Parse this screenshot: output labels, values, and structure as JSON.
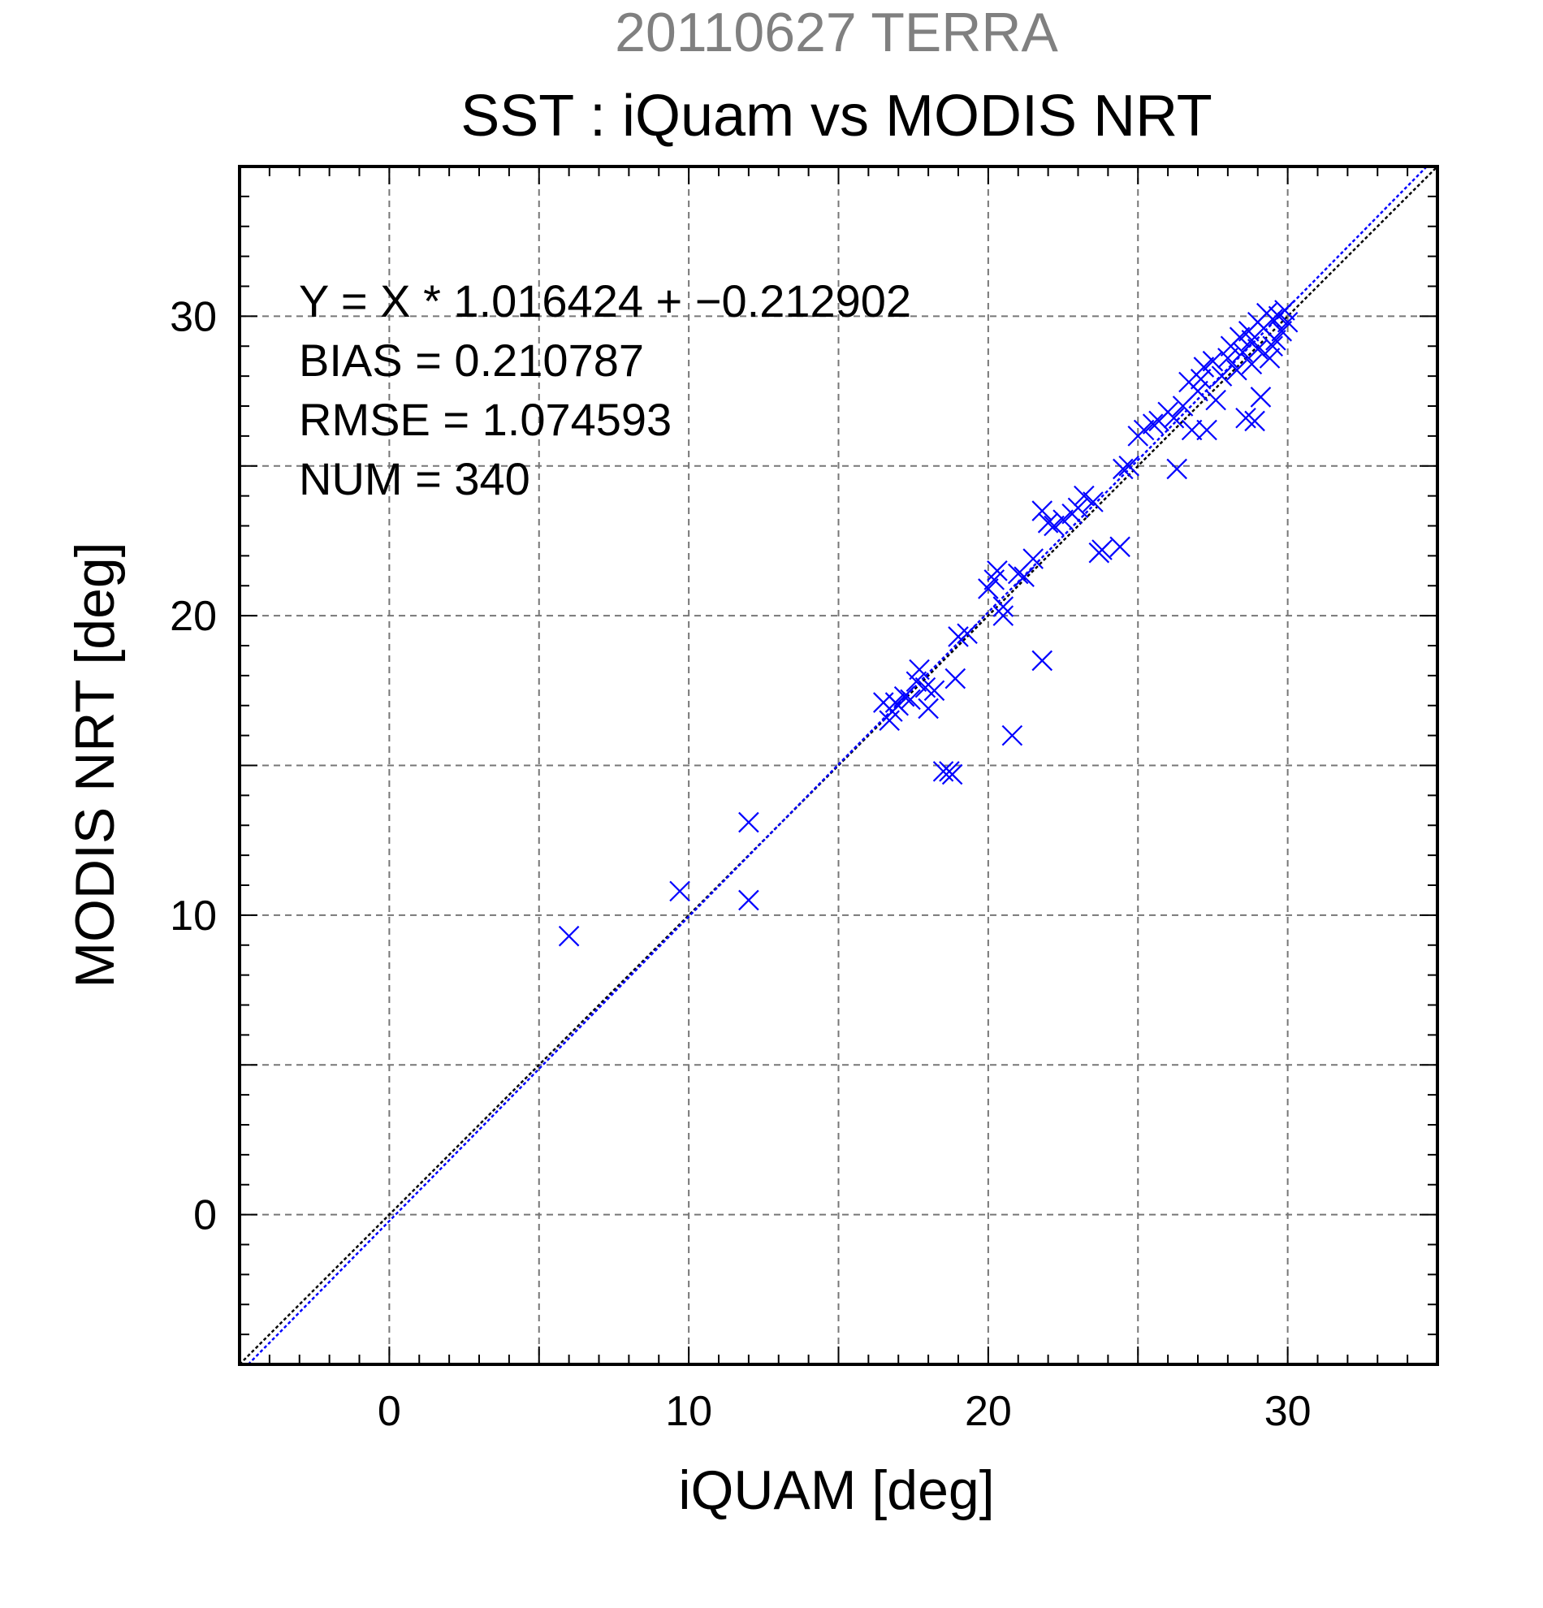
{
  "chart_data": {
    "type": "scatter",
    "supertitle": "20110627 TERRA",
    "title": "SST : iQuam vs MODIS NRT",
    "xlabel": "iQUAM [deg]",
    "ylabel": "MODIS NRT [deg]",
    "xlim": [
      -5,
      35
    ],
    "ylim": [
      -5,
      35
    ],
    "xticks": [
      0,
      10,
      20,
      30
    ],
    "yticks": [
      0,
      10,
      20,
      30
    ],
    "grid": true,
    "colors": {
      "points": "#0000ff",
      "fit_line": "#0000ff",
      "identity_line": "#000000",
      "grid": "#777777"
    },
    "stats": {
      "equation": "Y = X * 1.016424 + −0.212902",
      "bias": "BIAS = 0.210787",
      "rmse": "RMSE = 1.074593",
      "num": "NUM = 340"
    },
    "fit": {
      "slope": 1.016424,
      "intercept": -0.212902
    },
    "marker": "x",
    "points": [
      [
        6.0,
        9.3
      ],
      [
        9.7,
        10.8
      ],
      [
        12.0,
        13.1
      ],
      [
        12.0,
        10.5
      ],
      [
        16.5,
        17.1
      ],
      [
        16.7,
        16.5
      ],
      [
        16.8,
        16.8
      ],
      [
        16.9,
        17.1
      ],
      [
        17.0,
        17.0
      ],
      [
        17.2,
        17.3
      ],
      [
        17.4,
        17.2
      ],
      [
        17.6,
        17.8
      ],
      [
        17.7,
        18.2
      ],
      [
        17.9,
        17.6
      ],
      [
        18.0,
        16.9
      ],
      [
        18.2,
        17.5
      ],
      [
        18.5,
        14.8
      ],
      [
        18.7,
        14.8
      ],
      [
        18.8,
        14.7
      ],
      [
        18.9,
        17.9
      ],
      [
        19.0,
        19.3
      ],
      [
        19.3,
        19.4
      ],
      [
        20.0,
        20.9
      ],
      [
        20.2,
        21.2
      ],
      [
        20.3,
        21.5
      ],
      [
        20.5,
        20.3
      ],
      [
        20.5,
        20.0
      ],
      [
        20.8,
        16.0
      ],
      [
        21.0,
        21.4
      ],
      [
        21.2,
        21.3
      ],
      [
        21.5,
        21.9
      ],
      [
        21.8,
        23.5
      ],
      [
        21.8,
        18.5
      ],
      [
        22.0,
        23.1
      ],
      [
        22.2,
        23.0
      ],
      [
        22.5,
        23.2
      ],
      [
        22.8,
        23.4
      ],
      [
        23.0,
        23.6
      ],
      [
        23.2,
        24.0
      ],
      [
        23.5,
        23.8
      ],
      [
        23.7,
        22.1
      ],
      [
        23.8,
        22.2
      ],
      [
        24.4,
        22.3
      ],
      [
        24.5,
        24.9
      ],
      [
        24.7,
        25.0
      ],
      [
        25.0,
        26.0
      ],
      [
        25.2,
        26.2
      ],
      [
        25.5,
        26.4
      ],
      [
        25.7,
        26.5
      ],
      [
        26.0,
        26.8
      ],
      [
        26.2,
        26.6
      ],
      [
        26.3,
        24.9
      ],
      [
        26.5,
        27.0
      ],
      [
        26.7,
        27.8
      ],
      [
        26.8,
        26.2
      ],
      [
        27.0,
        27.5
      ],
      [
        27.1,
        27.9
      ],
      [
        27.2,
        28.3
      ],
      [
        27.3,
        26.2
      ],
      [
        27.5,
        28.5
      ],
      [
        27.6,
        27.2
      ],
      [
        27.8,
        28.0
      ],
      [
        28.0,
        28.6
      ],
      [
        28.1,
        29.0
      ],
      [
        28.3,
        28.2
      ],
      [
        28.4,
        29.3
      ],
      [
        28.5,
        28.8
      ],
      [
        28.6,
        26.6
      ],
      [
        28.7,
        29.5
      ],
      [
        28.8,
        28.4
      ],
      [
        28.9,
        26.5
      ],
      [
        29.0,
        29.8
      ],
      [
        29.0,
        28.9
      ],
      [
        29.1,
        27.3
      ],
      [
        29.2,
        29.6
      ],
      [
        29.3,
        30.1
      ],
      [
        29.4,
        28.6
      ],
      [
        29.5,
        29.9
      ],
      [
        29.6,
        29.2
      ],
      [
        29.7,
        30.0
      ],
      [
        29.8,
        29.5
      ],
      [
        29.9,
        30.2
      ],
      [
        30.0,
        29.8
      ],
      [
        29.5,
        29.0
      ],
      [
        28.8,
        29.2
      ]
    ]
  }
}
